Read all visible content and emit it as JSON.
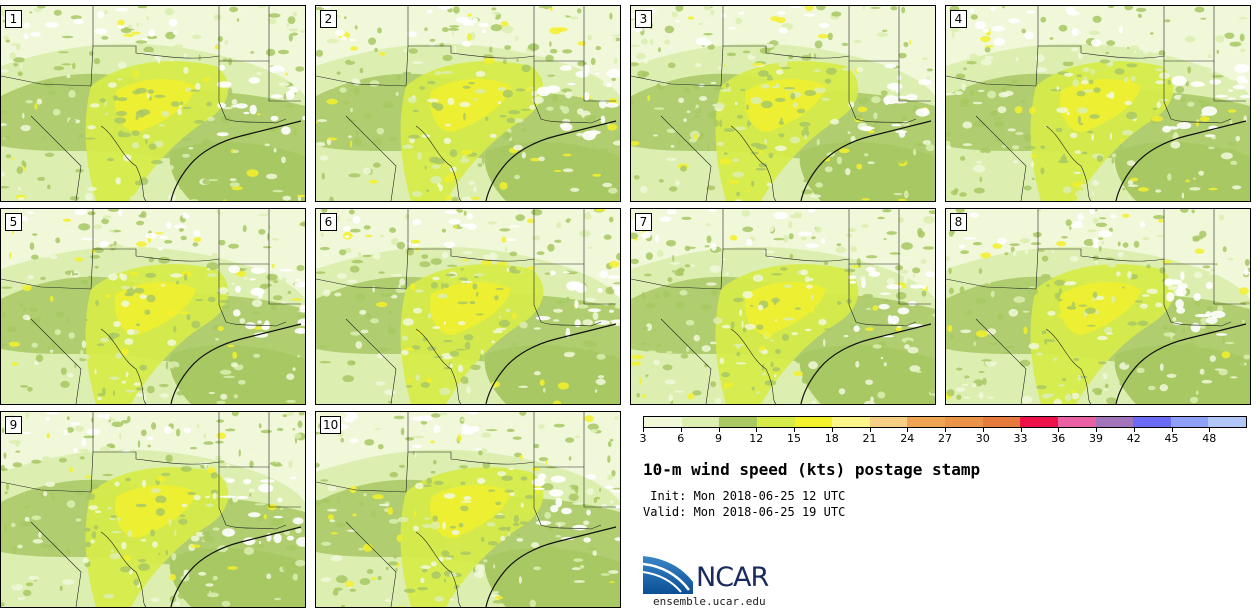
{
  "panels": [
    {
      "label": "1"
    },
    {
      "label": "2"
    },
    {
      "label": "3"
    },
    {
      "label": "4"
    },
    {
      "label": "5"
    },
    {
      "label": "6"
    },
    {
      "label": "7"
    },
    {
      "label": "8"
    },
    {
      "label": "9"
    },
    {
      "label": "10"
    }
  ],
  "colorbar": {
    "colors": [
      "#f1f8da",
      "#dcefb0",
      "#a8c864",
      "#d6eb4a",
      "#f3f02c",
      "#fdf48a",
      "#f5cf84",
      "#efa454",
      "#eb9348",
      "#e57a3c",
      "#ee1048",
      "#e960a3",
      "#a275bb",
      "#6a6af5",
      "#8ea1f6",
      "#b2c6f8"
    ],
    "ticks": [
      "3",
      "6",
      "9",
      "12",
      "15",
      "18",
      "21",
      "24",
      "27",
      "30",
      "33",
      "36",
      "39",
      "42",
      "45",
      "48"
    ]
  },
  "title": "10-m wind speed (kts) postage stamp",
  "init": " Init: Mon 2018-06-25 12 UTC",
  "valid": "Valid: Mon 2018-06-25 19 UTC",
  "logo": {
    "text": "NCAR",
    "icon": "ncar-logo-icon"
  },
  "site": "ensemble.ucar.edu"
}
